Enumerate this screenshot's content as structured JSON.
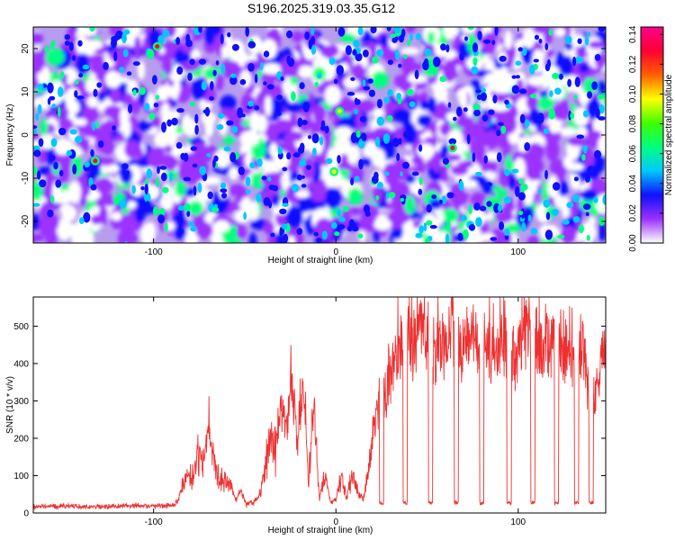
{
  "chart_data": [
    {
      "type": "heatmap",
      "title": "S196.2025.319.03.35.G12",
      "xlabel": "Height of straight line (km)",
      "ylabel": "Frequency (Hz)",
      "xlim": [
        -166,
        148
      ],
      "ylim": [
        -25,
        25
      ],
      "xticks": [
        -100,
        0,
        100
      ],
      "xtick_labels": [
        "-100",
        "0",
        "100"
      ],
      "yticks": [
        -20,
        -10,
        0,
        10,
        20
      ],
      "ytick_labels": [
        "-20",
        "-10",
        "0",
        "10",
        "20"
      ],
      "colorbar": {
        "label": "Normalized spectral amplitude",
        "range": [
          0,
          0.145
        ],
        "ticks": [
          0,
          0.02,
          0.04,
          0.06,
          0.08,
          0.1,
          0.12,
          0.14
        ],
        "tick_labels": [
          "0.00",
          "0.02",
          "0.04",
          "0.06",
          "0.08",
          "0.10",
          "0.12",
          "0.14"
        ],
        "colors": [
          "#ffffff",
          "#9b30ff",
          "#1010ff",
          "#00c8ff",
          "#00ff80",
          "#40ff00",
          "#ffff00",
          "#ff6000",
          "#ff0030",
          "#ff0090"
        ]
      },
      "hotspots": [
        {
          "x": -98,
          "y": 20.5,
          "value": 0.14
        },
        {
          "x": -132,
          "y": -6,
          "value": 0.14
        },
        {
          "x": 64,
          "y": -3,
          "value": 0.13
        },
        {
          "x": -1,
          "y": -8.5,
          "value": 0.11
        },
        {
          "x": 2,
          "y": 5.5,
          "value": 0.1
        }
      ]
    },
    {
      "type": "line",
      "xlabel": "Height of straight line (km)",
      "ylabel": "SNR (10 * v/v)",
      "xlim": [
        -166,
        148
      ],
      "ylim": [
        0,
        578
      ],
      "xticks": [
        -100,
        0,
        100
      ],
      "xtick_labels": [
        "-100",
        "0",
        "100"
      ],
      "yticks": [
        0,
        100,
        200,
        300,
        400,
        500
      ],
      "ytick_labels": [
        "0",
        "100",
        "200",
        "300",
        "400",
        "500"
      ],
      "series": [
        {
          "name": "SNR",
          "color": "#ee3030",
          "x": [
            -166,
            -150,
            -130,
            -110,
            -95,
            -88,
            -85,
            -82,
            -79,
            -76,
            -73,
            -70,
            -67,
            -64,
            -61,
            -58,
            -55,
            -52,
            -49,
            -45,
            -42,
            -39,
            -36,
            -33,
            -30,
            -27,
            -24,
            -21,
            -18,
            -15,
            -12,
            -9,
            -6,
            -3,
            0,
            3,
            6,
            9,
            12,
            15,
            18,
            21,
            24,
            27,
            30,
            33,
            36,
            39,
            42,
            45,
            48,
            51,
            54,
            57,
            60,
            63,
            66,
            69,
            72,
            75,
            78,
            81,
            84,
            87,
            90,
            93,
            96,
            99,
            102,
            105,
            108,
            111,
            114,
            117,
            120,
            123,
            126,
            129,
            132,
            135,
            138,
            141,
            144,
            148
          ],
          "y": [
            18,
            20,
            18,
            22,
            20,
            25,
            60,
            120,
            90,
            170,
            140,
            255,
            150,
            95,
            90,
            85,
            40,
            60,
            25,
            30,
            50,
            120,
            230,
            165,
            330,
            240,
            385,
            200,
            360,
            95,
            300,
            45,
            110,
            30,
            40,
            100,
            40,
            110,
            60,
            35,
            120,
            250,
            320,
            340,
            420,
            440,
            500,
            540,
            470,
            560,
            520,
            560,
            470,
            500,
            480,
            575,
            460,
            510,
            470,
            560,
            430,
            520,
            460,
            500,
            470,
            480,
            500,
            470,
            490,
            520,
            440,
            500,
            470,
            510,
            480,
            500,
            470,
            490,
            450,
            480,
            370,
            320,
            380,
            470
          ]
        }
      ],
      "dropouts_x": [
        25,
        38,
        52,
        66,
        80,
        95,
        108,
        121,
        132,
        140
      ],
      "dropout_level": 22
    }
  ]
}
